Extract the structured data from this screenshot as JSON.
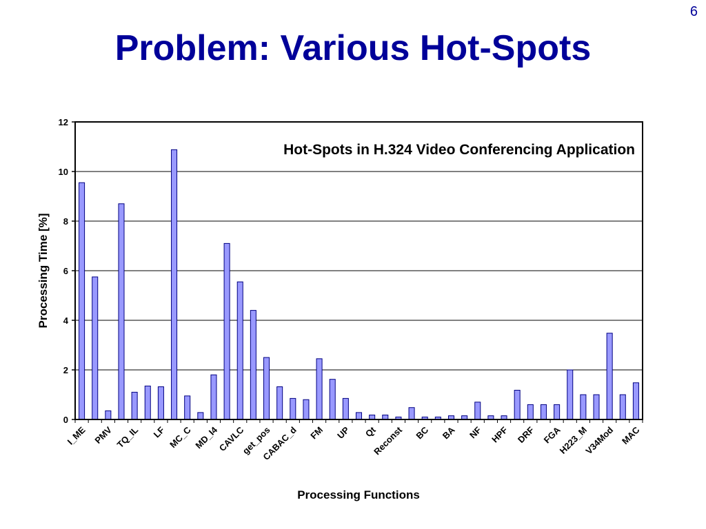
{
  "slide": {
    "number": "6",
    "title": "Problem: Various Hot-Spots"
  },
  "chart_data": {
    "type": "bar",
    "title": "Hot-Spots in H.324 Video Conferencing Application",
    "xlabel": "Processing Functions",
    "ylabel": "Processing Time [%]",
    "ylim": [
      0,
      12
    ],
    "yticks": [
      "0",
      "2",
      "4",
      "6",
      "8",
      "10",
      "12"
    ],
    "grid": true,
    "legend": "none",
    "bar_color": "#9999ff",
    "bar_stroke": "#000080",
    "values": [
      9.55,
      5.75,
      0.35,
      8.7,
      1.1,
      1.35,
      1.32,
      10.88,
      0.95,
      0.28,
      1.8,
      7.1,
      5.55,
      4.4,
      2.5,
      1.32,
      0.85,
      0.8,
      2.45,
      1.62,
      0.85,
      0.28,
      0.18,
      0.18,
      0.1,
      0.48,
      0.1,
      0.1,
      0.15,
      0.15,
      0.7,
      0.15,
      0.15,
      1.18,
      0.6,
      0.6,
      0.6,
      2.0,
      1.0,
      1.0,
      3.48,
      1.0,
      1.48
    ],
    "tick_labels": [
      {
        "label": "I_ME",
        "at": 0
      },
      {
        "label": "PMV",
        "at": 2
      },
      {
        "label": "TQ_IL",
        "at": 4
      },
      {
        "label": "LF",
        "at": 6
      },
      {
        "label": "MC_C",
        "at": 8
      },
      {
        "label": "MD_I4",
        "at": 10
      },
      {
        "label": "CAVLC",
        "at": 12
      },
      {
        "label": "get_pos",
        "at": 14
      },
      {
        "label": "CABAC_d",
        "at": 16
      },
      {
        "label": "FM",
        "at": 18
      },
      {
        "label": "UP",
        "at": 20
      },
      {
        "label": "Qt",
        "at": 22
      },
      {
        "label": "Reconst",
        "at": 24
      },
      {
        "label": "BC",
        "at": 26
      },
      {
        "label": "BA",
        "at": 28
      },
      {
        "label": "NF",
        "at": 30
      },
      {
        "label": "HPF",
        "at": 32
      },
      {
        "label": "DRF",
        "at": 34
      },
      {
        "label": "FGA",
        "at": 36
      },
      {
        "label": "H223_M",
        "at": 38
      },
      {
        "label": "V34Mod",
        "at": 40
      },
      {
        "label": "MAC",
        "at": 42
      }
    ]
  }
}
